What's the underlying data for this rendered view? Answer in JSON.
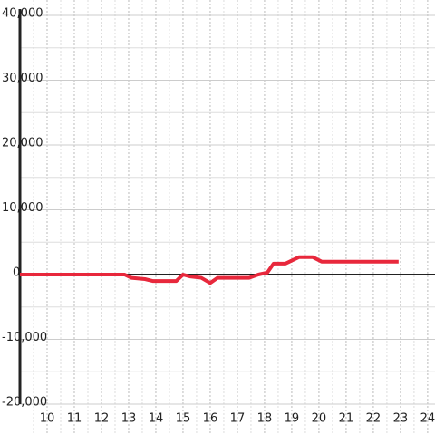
{
  "chart_data": {
    "type": "line",
    "x": [
      9.0,
      12.85,
      13.1,
      13.6,
      13.9,
      14.75,
      15.0,
      15.27,
      15.67,
      16.0,
      16.27,
      17.43,
      17.77,
      18.1,
      18.33,
      18.77,
      19.27,
      19.77,
      20.1,
      22.93
    ],
    "series": [
      {
        "color": "#e8283c",
        "values": [
          0,
          0,
          -500,
          -700,
          -1000,
          -1000,
          0,
          -300,
          -500,
          -1300,
          -500,
          -500,
          0,
          300,
          1700,
          1700,
          2700,
          2700,
          2000,
          2000
        ]
      }
    ],
    "xlim": [
      9,
      24.27
    ],
    "xticks": [
      10,
      11,
      12,
      13,
      14,
      15,
      16,
      17,
      18,
      19,
      20,
      21,
      22,
      23,
      24
    ],
    "ylim": [
      -20000,
      40000
    ],
    "yticks": [
      {
        "value": -20000,
        "label": "-20,000"
      },
      {
        "value": -10000,
        "label": "-10,000"
      },
      0,
      {
        "value": 10000,
        "label": "10,000"
      },
      {
        "value": 20000,
        "label": "20,000"
      },
      {
        "value": 30000,
        "label": "30,000"
      },
      {
        "value": 40000,
        "label": "40,000"
      }
    ],
    "grid": true
  }
}
